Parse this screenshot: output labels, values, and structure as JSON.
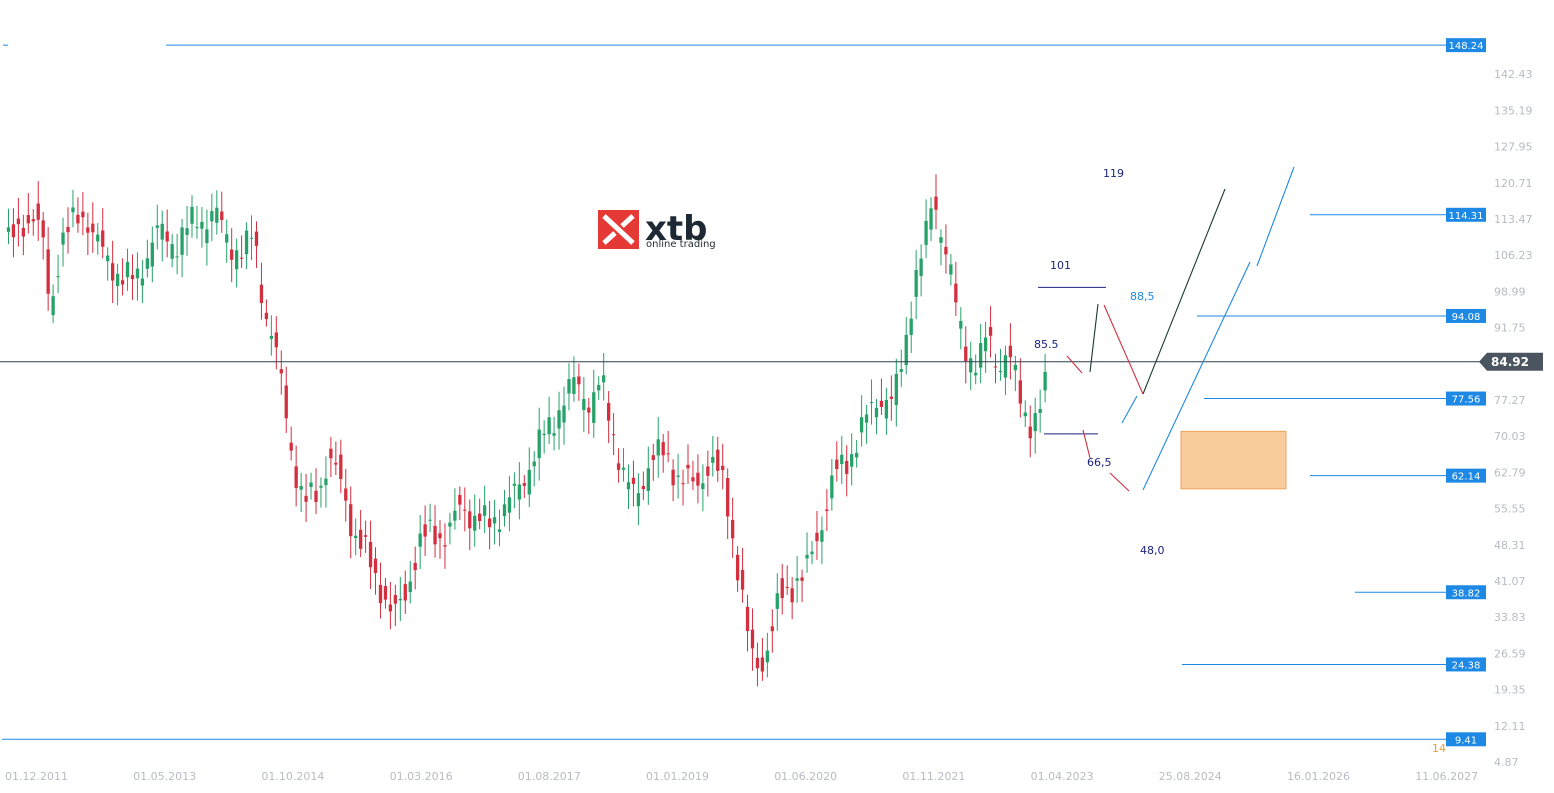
{
  "logo": {
    "name": "xtb",
    "tagline": "online trading"
  },
  "chart_data": {
    "type": "candlestick",
    "ylim": [
      4.87,
      149.7
    ],
    "y_ticks": [
      "142.43",
      "135.19",
      "127.95",
      "120.71",
      "113.47",
      "106.23",
      "98.99",
      "91.75",
      "77.27",
      "70.03",
      "62.79",
      "55.55",
      "48.31",
      "41.07",
      "33.83",
      "26.59",
      "19.35",
      "12.11",
      "4.87"
    ],
    "x_ticks": [
      "01.12.2011",
      "01.05.2013",
      "01.10.2014",
      "01.03.2016",
      "01.08.2017",
      "01.01.2019",
      "01.06.2020",
      "01.11.2021",
      "01.04.2023",
      "25.08.2024",
      "16.01.2026",
      "11.06.2027"
    ],
    "current_price": {
      "label": "84.92",
      "value": 84.92,
      "color": "#4a5560"
    },
    "levels": [
      {
        "label": "148.24",
        "value": 148.24
      },
      {
        "label": "114.31",
        "value": 114.31
      },
      {
        "label": "94.08",
        "value": 94.08
      },
      {
        "label": "77.56",
        "value": 77.56
      },
      {
        "label": "62.14",
        "value": 62.14
      },
      {
        "label": "38.82",
        "value": 38.82
      },
      {
        "label": "24.38",
        "value": 24.38
      },
      {
        "label": "9.41",
        "value": 9.41
      }
    ],
    "annotations": [
      {
        "text": "119",
        "value": 119,
        "color": "#1a237e"
      },
      {
        "text": "101",
        "value": 101,
        "color": "#1a237e"
      },
      {
        "text": "88,5",
        "value": 88.5,
        "color": "#1e88e5"
      },
      {
        "text": "85.5",
        "value": 85.5,
        "color": "#1a237e"
      },
      {
        "text": "66,5",
        "value": 66.5,
        "color": "#1a237e"
      },
      {
        "text": "48,0",
        "value": 48.0,
        "color": "#1a237e"
      }
    ],
    "corner_label": "14",
    "zone": {
      "from": 59.5,
      "to": 71.0,
      "color": "#f9cc9d"
    },
    "colors": {
      "up": "#26a269",
      "down": "#d32f3f",
      "level": "#1e88e5",
      "label_bg": "#1e88e5",
      "grid": "#eef0f3"
    }
  }
}
